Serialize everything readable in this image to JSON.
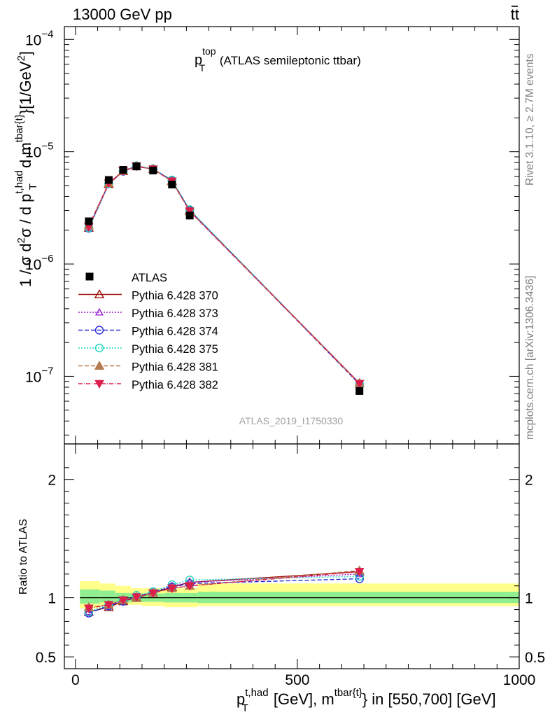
{
  "header": {
    "left": "13000 GeV pp",
    "right_main": "tt",
    "right_bar": "̅"
  },
  "side_text": {
    "rivet": "Rivet 3.1.10, ≥ 2.7M events",
    "mcplots": "mcplots.cern.ch [arXiv:1306.3436]"
  },
  "watermark": "ATLAS_2019_I1750330",
  "chart_data": [
    {
      "type": "line",
      "panel": "main",
      "title_main": "p",
      "title_sup": "top",
      "title_sub": "T",
      "title_rest": " (ATLAS semileptonic ttbar)",
      "ylabel_parts": [
        "1 / σ d",
        "2",
        "σ / d p",
        "t,had",
        "T",
        " d m",
        "tbar{t}",
        "}[1/GeV",
        "2",
        "]"
      ],
      "yscale": "log",
      "ylim": [
        2.5e-08,
        0.00013
      ],
      "xlim": [
        -25,
        1000
      ],
      "ytick_labels": [
        {
          "value": 1e-07,
          "base": "10",
          "exp": "−7"
        },
        {
          "value": 1e-06,
          "base": "10",
          "exp": "−6"
        },
        {
          "value": 1e-05,
          "base": "10",
          "exp": "−5"
        },
        {
          "value": 0.0001,
          "base": "10",
          "exp": "−4"
        }
      ],
      "data": {
        "name": "ATLAS",
        "color": "#000000",
        "x": [
          30,
          75,
          107.5,
          137.5,
          175,
          217.5,
          257.5,
          640
        ],
        "y": [
          2.4e-06,
          5.6e-06,
          6.9e-06,
          7.4e-06,
          6.8e-06,
          5.1e-06,
          2.7e-06,
          7.4e-08
        ]
      },
      "series": [
        {
          "name": "Pythia 6.428 370",
          "color": "#a01010",
          "dash": "",
          "marker": "triangle-up-open",
          "x": [
            30,
            75,
            107.5,
            137.5,
            175,
            217.5,
            257.5,
            640
          ],
          "y": [
            2.1e-06,
            5.15e-06,
            6.7e-06,
            7.4e-06,
            7e-06,
            5.5e-06,
            3e-06,
            8.7e-08
          ]
        },
        {
          "name": "Pythia 6.428 373",
          "color": "#9b1fd6",
          "dash": "2,2",
          "marker": "triangle-up-open-small",
          "x": [
            30,
            75,
            107.5,
            137.5,
            175,
            217.5,
            257.5,
            640
          ],
          "y": [
            2.12e-06,
            5.2e-06,
            6.75e-06,
            7.45e-06,
            7e-06,
            5.5e-06,
            3e-06,
            8.6e-08
          ]
        },
        {
          "name": "Pythia 6.428 374",
          "color": "#2a2ad6",
          "dash": "6,3",
          "marker": "circle-open",
          "x": [
            30,
            75,
            107.5,
            137.5,
            175,
            217.5,
            257.5,
            640
          ],
          "y": [
            2.08e-06,
            5.2e-06,
            6.7e-06,
            7.45e-06,
            7e-06,
            5.55e-06,
            3e-06,
            8.5e-08
          ]
        },
        {
          "name": "Pythia 6.428 375",
          "color": "#22d6c0",
          "dash": "2,2",
          "marker": "circle-open",
          "x": [
            30,
            75,
            107.5,
            137.5,
            175,
            217.5,
            257.5,
            640
          ],
          "y": [
            2.1e-06,
            5.2e-06,
            6.75e-06,
            7.5e-06,
            7.05e-06,
            5.6e-06,
            3.05e-06,
            8.6e-08
          ]
        },
        {
          "name": "Pythia 6.428 381",
          "color": "#b47a50",
          "dash": "6,3",
          "marker": "triangle-up-filled",
          "x": [
            30,
            75,
            107.5,
            137.5,
            175,
            217.5,
            257.5,
            640
          ],
          "y": [
            2.2e-06,
            5.25e-06,
            6.75e-06,
            7.45e-06,
            7e-06,
            5.45e-06,
            2.95e-06,
            8.7e-08
          ]
        },
        {
          "name": "Pythia 6.428 382",
          "color": "#dc1e4a",
          "dash": "6,2,1,2",
          "marker": "triangle-down-filled",
          "x": [
            30,
            75,
            107.5,
            137.5,
            175,
            217.5,
            257.5,
            640
          ],
          "y": [
            2.15e-06,
            5.25e-06,
            6.75e-06,
            7.45e-06,
            7e-06,
            5.45e-06,
            2.95e-06,
            8.6e-08
          ]
        }
      ]
    },
    {
      "type": "line",
      "panel": "ratio",
      "ylabel": "Ratio to ATLAS",
      "ylim": [
        0.4,
        2.3
      ],
      "xlim": [
        -25,
        1000
      ],
      "ytick_labels": [
        {
          "value": 0.5,
          "label": "0.5"
        },
        {
          "value": 1,
          "label": "1"
        },
        {
          "value": 2,
          "label": "2"
        }
      ],
      "xtick_labels": [
        {
          "value": 0,
          "label": "0"
        },
        {
          "value": 500,
          "label": "500"
        },
        {
          "value": 1000,
          "label": "1000"
        }
      ],
      "xlabel_parts": [
        "p",
        "t,had",
        "T",
        " [GeV], m",
        "tbar{t}",
        "} in [550,700] [GeV]"
      ],
      "bands": {
        "edges": [
          10,
          55,
          90,
          125,
          150,
          200,
          240,
          275,
          1000
        ],
        "inner": [
          [
            0.95,
            1.07
          ],
          [
            0.96,
            1.06
          ],
          [
            0.96,
            1.04
          ],
          [
            0.965,
            1.035
          ],
          [
            0.965,
            1.035
          ],
          [
            0.96,
            1.04
          ],
          [
            0.96,
            1.04
          ],
          [
            0.955,
            1.05
          ]
        ],
        "outer": [
          [
            0.91,
            1.14
          ],
          [
            0.93,
            1.12
          ],
          [
            0.94,
            1.1
          ],
          [
            0.94,
            1.08
          ],
          [
            0.93,
            1.08
          ],
          [
            0.92,
            1.08
          ],
          [
            0.92,
            1.08
          ],
          [
            0.93,
            1.12
          ]
        ],
        "inner_color": "#90ee90",
        "outer_color": "#ffff8a"
      },
      "series": [
        {
          "name": "Pythia 6.428 370",
          "y": [
            0.88,
            0.92,
            0.97,
            1.0,
            1.04,
            1.09,
            1.13,
            1.22
          ]
        },
        {
          "name": "Pythia 6.428 373",
          "y": [
            0.88,
            0.93,
            0.975,
            1.005,
            1.05,
            1.1,
            1.13,
            1.2
          ]
        },
        {
          "name": "Pythia 6.428 374",
          "y": [
            0.87,
            0.93,
            0.97,
            1.005,
            1.05,
            1.09,
            1.12,
            1.16
          ]
        },
        {
          "name": "Pythia 6.428 375",
          "y": [
            0.88,
            0.94,
            0.98,
            1.02,
            1.05,
            1.11,
            1.15,
            1.18
          ]
        },
        {
          "name": "Pythia 6.428 381",
          "y": [
            0.92,
            0.94,
            0.98,
            1.005,
            1.04,
            1.08,
            1.1,
            1.23
          ]
        },
        {
          "name": "Pythia 6.428 382",
          "y": [
            0.91,
            0.94,
            0.98,
            1.005,
            1.04,
            1.08,
            1.1,
            1.22
          ]
        }
      ]
    }
  ]
}
